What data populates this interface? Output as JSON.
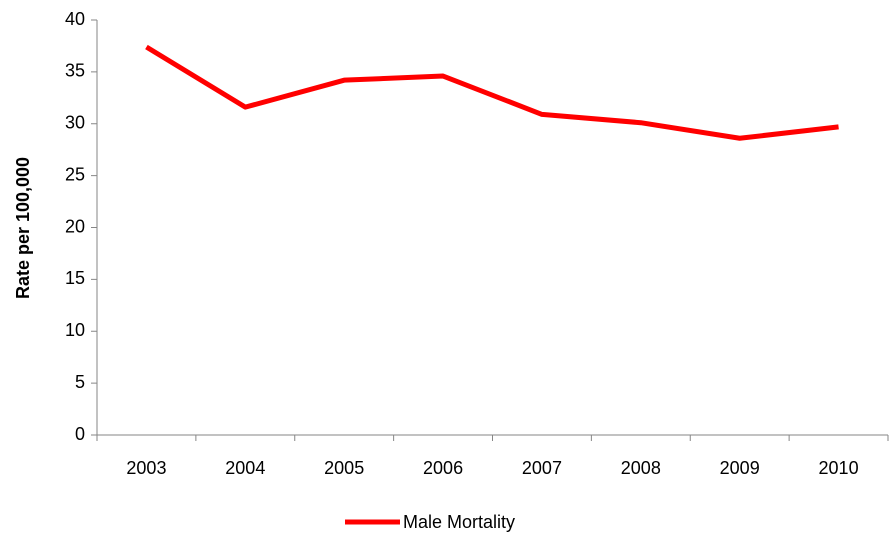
{
  "chart_data": {
    "type": "line",
    "y_label": "Rate per 100,000",
    "categories": [
      "2003",
      "2004",
      "2005",
      "2006",
      "2007",
      "2008",
      "2009",
      "2010"
    ],
    "series": [
      {
        "name": "Male Mortality",
        "color": "#ff0000",
        "values": [
          37.4,
          31.6,
          34.2,
          34.6,
          30.9,
          30.1,
          28.6,
          29.7
        ]
      }
    ],
    "ylim": [
      0,
      40
    ],
    "yticks": [
      0,
      5,
      10,
      15,
      20,
      25,
      30,
      35,
      40
    ],
    "grid": false,
    "legend": "bottom"
  }
}
